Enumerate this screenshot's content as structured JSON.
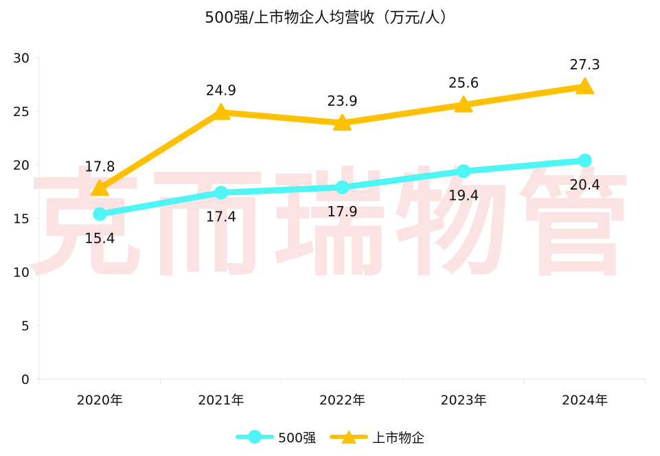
{
  "chart_data": {
    "type": "line",
    "title": "500强/上市物企人均营收（万元/人）",
    "categories": [
      "2020年",
      "2021年",
      "2022年",
      "2023年",
      "2024年"
    ],
    "ylim": [
      0,
      30
    ],
    "yticks": [
      "0",
      "5",
      "10",
      "15",
      "20",
      "25",
      "30"
    ],
    "grid": false,
    "legend_position": "bottom",
    "series": [
      {
        "name": "500强",
        "values": [
          15.4,
          17.4,
          17.9,
          19.4,
          20.4
        ],
        "labels": [
          "15.4",
          "17.4",
          "17.9",
          "19.4",
          "20.4"
        ],
        "color": "#4df5f5",
        "marker": "circle"
      },
      {
        "name": "上市物企",
        "values": [
          17.8,
          24.9,
          23.9,
          25.6,
          27.3
        ],
        "labels": [
          "17.8",
          "24.9",
          "23.9",
          "25.6",
          "27.3"
        ],
        "color": "#ffc000",
        "marker": "triangle"
      }
    ]
  },
  "watermark": "克而瑞物管"
}
